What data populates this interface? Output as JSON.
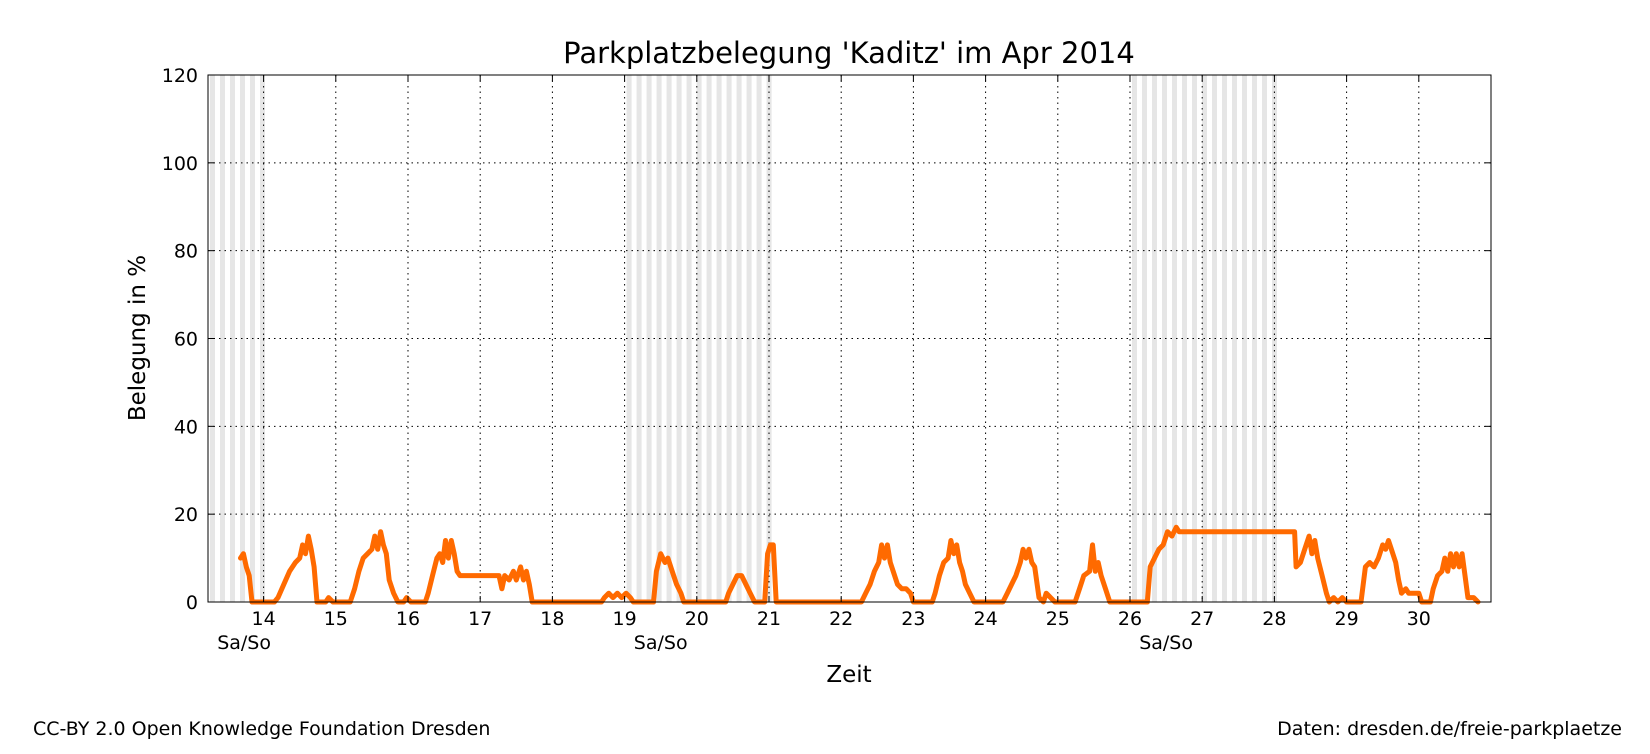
{
  "chart_data": {
    "type": "line",
    "title": "Parkplatzbelegung 'Kaditz' im Apr 2014",
    "xlabel": "Zeit",
    "ylabel": "Belegung in %",
    "xlim": [
      13.23,
      31.0
    ],
    "ylim": [
      0,
      120
    ],
    "yticks": [
      0,
      20,
      40,
      60,
      80,
      100,
      120
    ],
    "xticks": [
      14,
      15,
      16,
      17,
      18,
      19,
      20,
      21,
      22,
      23,
      24,
      25,
      26,
      27,
      28,
      29,
      30
    ],
    "weekend_label": "Sa/So",
    "weekends": [
      [
        13.23,
        14
      ],
      [
        19,
        21
      ],
      [
        26,
        28
      ]
    ],
    "grid": true,
    "series": [
      {
        "color": "#ff6a00",
        "points": [
          [
            13.68,
            10
          ],
          [
            13.72,
            11
          ],
          [
            13.76,
            8
          ],
          [
            13.8,
            6
          ],
          [
            13.84,
            0
          ],
          [
            14.15,
            0
          ],
          [
            14.2,
            1
          ],
          [
            14.28,
            4
          ],
          [
            14.36,
            7
          ],
          [
            14.44,
            9
          ],
          [
            14.5,
            10
          ],
          [
            14.54,
            13
          ],
          [
            14.58,
            11
          ],
          [
            14.62,
            15
          ],
          [
            14.66,
            12
          ],
          [
            14.7,
            8
          ],
          [
            14.74,
            0
          ],
          [
            14.86,
            0
          ],
          [
            14.9,
            1
          ],
          [
            14.96,
            0
          ],
          [
            15.2,
            0
          ],
          [
            15.26,
            3
          ],
          [
            15.32,
            7
          ],
          [
            15.38,
            10
          ],
          [
            15.44,
            11
          ],
          [
            15.5,
            12
          ],
          [
            15.54,
            15
          ],
          [
            15.58,
            12
          ],
          [
            15.62,
            16
          ],
          [
            15.66,
            13
          ],
          [
            15.7,
            11
          ],
          [
            15.74,
            5
          ],
          [
            15.8,
            2
          ],
          [
            15.86,
            0
          ],
          [
            15.94,
            0
          ],
          [
            15.98,
            1
          ],
          [
            16.04,
            0
          ],
          [
            16.24,
            0
          ],
          [
            16.28,
            2
          ],
          [
            16.34,
            6
          ],
          [
            16.4,
            10
          ],
          [
            16.44,
            11
          ],
          [
            16.48,
            9
          ],
          [
            16.52,
            14
          ],
          [
            16.56,
            10
          ],
          [
            16.6,
            14
          ],
          [
            16.64,
            11
          ],
          [
            16.68,
            7
          ],
          [
            16.72,
            6
          ],
          [
            17.26,
            6
          ],
          [
            17.3,
            3
          ],
          [
            17.34,
            6
          ],
          [
            17.4,
            5
          ],
          [
            17.46,
            7
          ],
          [
            17.5,
            5
          ],
          [
            17.56,
            8
          ],
          [
            17.6,
            5
          ],
          [
            17.64,
            7
          ],
          [
            17.68,
            4
          ],
          [
            17.72,
            0
          ],
          [
            18.68,
            0
          ],
          [
            18.72,
            1
          ],
          [
            18.78,
            2
          ],
          [
            18.84,
            1
          ],
          [
            18.9,
            2
          ],
          [
            18.96,
            1
          ],
          [
            19.02,
            2
          ],
          [
            19.08,
            1
          ],
          [
            19.12,
            0
          ],
          [
            19.4,
            0
          ],
          [
            19.44,
            7
          ],
          [
            19.5,
            11
          ],
          [
            19.56,
            9
          ],
          [
            19.6,
            10
          ],
          [
            19.66,
            7
          ],
          [
            19.72,
            4
          ],
          [
            19.78,
            2
          ],
          [
            19.82,
            0
          ],
          [
            20.4,
            0
          ],
          [
            20.44,
            2
          ],
          [
            20.5,
            4
          ],
          [
            20.56,
            6
          ],
          [
            20.62,
            6
          ],
          [
            20.68,
            4
          ],
          [
            20.74,
            2
          ],
          [
            20.8,
            0
          ],
          [
            20.94,
            0
          ],
          [
            20.98,
            11
          ],
          [
            21.02,
            13
          ],
          [
            21.06,
            13
          ],
          [
            21.1,
            0
          ],
          [
            22.28,
            0
          ],
          [
            22.34,
            2
          ],
          [
            22.4,
            4
          ],
          [
            22.46,
            7
          ],
          [
            22.52,
            9
          ],
          [
            22.56,
            13
          ],
          [
            22.6,
            10
          ],
          [
            22.64,
            13
          ],
          [
            22.68,
            9
          ],
          [
            22.72,
            7
          ],
          [
            22.78,
            4
          ],
          [
            22.84,
            3
          ],
          [
            22.9,
            3
          ],
          [
            22.96,
            2
          ],
          [
            23.0,
            0
          ],
          [
            23.26,
            0
          ],
          [
            23.3,
            2
          ],
          [
            23.36,
            6
          ],
          [
            23.42,
            9
          ],
          [
            23.48,
            10
          ],
          [
            23.52,
            14
          ],
          [
            23.56,
            11
          ],
          [
            23.6,
            13
          ],
          [
            23.64,
            9
          ],
          [
            23.68,
            7
          ],
          [
            23.72,
            4
          ],
          [
            23.78,
            2
          ],
          [
            23.84,
            0
          ],
          [
            24.24,
            0
          ],
          [
            24.3,
            2
          ],
          [
            24.36,
            4
          ],
          [
            24.42,
            6
          ],
          [
            24.48,
            9
          ],
          [
            24.52,
            12
          ],
          [
            24.56,
            10
          ],
          [
            24.6,
            12
          ],
          [
            24.64,
            9
          ],
          [
            24.68,
            8
          ],
          [
            24.74,
            1
          ],
          [
            24.8,
            0
          ],
          [
            24.84,
            2
          ],
          [
            24.9,
            1
          ],
          [
            24.96,
            0
          ],
          [
            25.24,
            0
          ],
          [
            25.3,
            3
          ],
          [
            25.36,
            6
          ],
          [
            25.44,
            7
          ],
          [
            25.48,
            13
          ],
          [
            25.52,
            7
          ],
          [
            25.56,
            9
          ],
          [
            25.6,
            6
          ],
          [
            25.66,
            3
          ],
          [
            25.72,
            0
          ],
          [
            26.24,
            0
          ],
          [
            26.28,
            8
          ],
          [
            26.34,
            10
          ],
          [
            26.4,
            12
          ],
          [
            26.46,
            13
          ],
          [
            26.52,
            16
          ],
          [
            26.58,
            15
          ],
          [
            26.64,
            17
          ],
          [
            26.68,
            16
          ],
          [
            28.28,
            16
          ],
          [
            28.3,
            8
          ],
          [
            28.36,
            9
          ],
          [
            28.42,
            12
          ],
          [
            28.48,
            15
          ],
          [
            28.52,
            11
          ],
          [
            28.56,
            14
          ],
          [
            28.6,
            10
          ],
          [
            28.66,
            6
          ],
          [
            28.72,
            2
          ],
          [
            28.76,
            0
          ],
          [
            28.82,
            1
          ],
          [
            28.88,
            0
          ],
          [
            28.94,
            1
          ],
          [
            29.0,
            0
          ],
          [
            29.2,
            0
          ],
          [
            29.26,
            8
          ],
          [
            29.32,
            9
          ],
          [
            29.38,
            8
          ],
          [
            29.44,
            10
          ],
          [
            29.5,
            13
          ],
          [
            29.54,
            12
          ],
          [
            29.58,
            14
          ],
          [
            29.62,
            12
          ],
          [
            29.68,
            9
          ],
          [
            29.72,
            5
          ],
          [
            29.76,
            2
          ],
          [
            29.82,
            3
          ],
          [
            29.86,
            2
          ],
          [
            29.92,
            2
          ],
          [
            30.0,
            2
          ],
          [
            30.04,
            0
          ],
          [
            30.16,
            0
          ],
          [
            30.2,
            3
          ],
          [
            30.26,
            6
          ],
          [
            30.32,
            7
          ],
          [
            30.36,
            10
          ],
          [
            30.4,
            7
          ],
          [
            30.44,
            11
          ],
          [
            30.48,
            8
          ],
          [
            30.52,
            11
          ],
          [
            30.56,
            8
          ],
          [
            30.6,
            11
          ],
          [
            30.64,
            6
          ],
          [
            30.68,
            1
          ],
          [
            30.76,
            1
          ],
          [
            30.82,
            0
          ]
        ]
      }
    ]
  },
  "footer": {
    "license": "CC-BY 2.0 Open Knowledge Foundation Dresden",
    "source": "Daten: dresden.de/freie-parkplaetze"
  }
}
